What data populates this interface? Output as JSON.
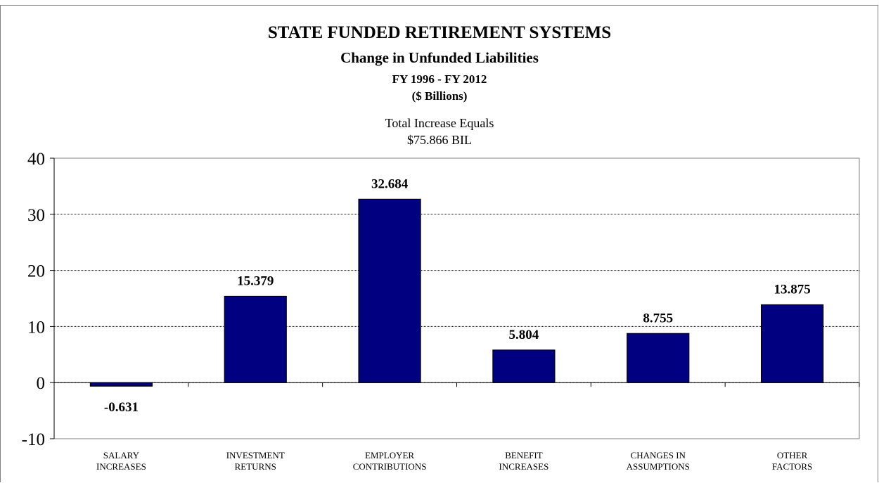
{
  "chart_data": {
    "type": "bar",
    "title": "STATE FUNDED RETIREMENT SYSTEMS",
    "subtitle": "Change in Unfunded Liabilities",
    "period": "FY 1996 - FY 2012",
    "units": "($ Billions)",
    "annotation_line1": "Total Increase Equals",
    "annotation_line2": "$75.866 BIL",
    "categories": [
      [
        "SALARY",
        "INCREASES"
      ],
      [
        "INVESTMENT",
        "RETURNS"
      ],
      [
        "EMPLOYER",
        "CONTRIBUTIONS"
      ],
      [
        "BENEFIT",
        "INCREASES"
      ],
      [
        "CHANGES IN",
        "ASSUMPTIONS"
      ],
      [
        "OTHER",
        "FACTORS"
      ]
    ],
    "values": [
      -0.631,
      15.379,
      32.684,
      5.804,
      8.755,
      13.875
    ],
    "value_labels": [
      "-0.631",
      "15.379",
      "32.684",
      "5.804",
      "8.755",
      "13.875"
    ],
    "yticks": [
      "40",
      "30",
      "20",
      "10",
      "0",
      "-10"
    ],
    "ytick_values": [
      40,
      30,
      20,
      10,
      0,
      -10
    ],
    "ylim": [
      -10,
      40
    ],
    "xlabel": "",
    "ylabel": "",
    "grid": true,
    "bar_color": "#000080"
  }
}
